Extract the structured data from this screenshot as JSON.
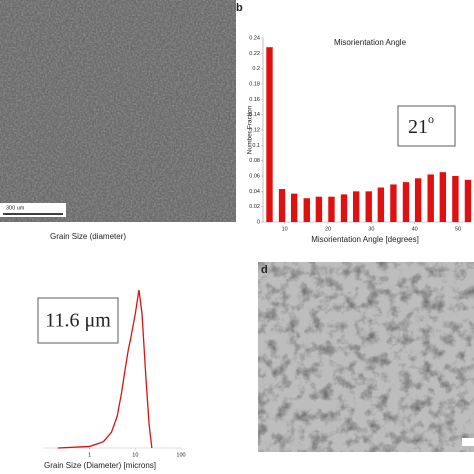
{
  "image_a": {
    "scale_bar": "300 um",
    "caption": "Grain Size (diameter)"
  },
  "image_d": {
    "label": "d"
  },
  "chart_data": [
    {
      "type": "bar",
      "label": "b",
      "title": "Misorientation Angle",
      "x_label": "Misorientation Angle [degrees]",
      "y_label": "Number Fraction",
      "x": [
        6.5,
        9.4,
        12.2,
        15.1,
        17.9,
        20.8,
        23.7,
        26.5,
        29.4,
        32.2,
        35.1,
        38,
        40.8,
        43.7,
        46.5,
        49.4,
        52.3
      ],
      "values": [
        0.228,
        0.043,
        0.037,
        0.031,
        0.033,
        0.033,
        0.036,
        0.04,
        0.04,
        0.045,
        0.049,
        0.052,
        0.057,
        0.062,
        0.065,
        0.06,
        0.055
      ],
      "color": "#e01010",
      "xlim": [
        5,
        53
      ],
      "xticks": [
        10,
        20,
        30,
        40,
        50
      ],
      "ylim": [
        0,
        0.24
      ],
      "yticks": [
        0,
        0.02,
        0.04,
        0.06,
        0.08,
        0.1,
        0.12,
        0.14,
        0.16,
        0.18,
        0.2,
        0.22,
        0.24
      ],
      "annotation": "21",
      "annotation_superscript": "o"
    },
    {
      "type": "line",
      "x_label": "Grain Size (Diameter) [microns]",
      "log_x": true,
      "x": [
        0.2,
        1,
        2,
        3,
        4,
        5,
        6,
        7,
        8,
        10,
        12,
        14,
        17,
        20,
        23
      ],
      "values": [
        0,
        0.01,
        0.04,
        0.1,
        0.2,
        0.35,
        0.5,
        0.62,
        0.7,
        0.85,
        1.0,
        0.85,
        0.45,
        0.15,
        0
      ],
      "color": "#e01010",
      "xlim": [
        0.1,
        100
      ],
      "xticks": [
        1,
        10,
        100
      ],
      "ylim": [
        0,
        1.05
      ],
      "annotation": "11.6 μm"
    }
  ]
}
